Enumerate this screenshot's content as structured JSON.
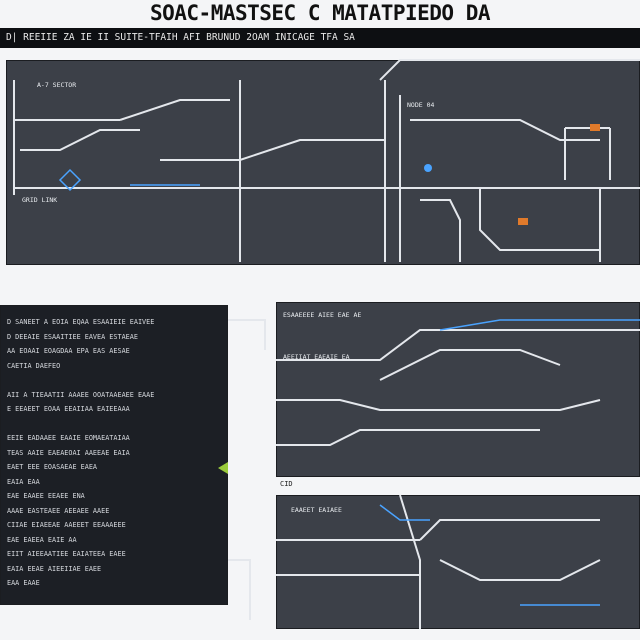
{
  "title": "SOAC-MASTSEC C MATATPIEDO DA",
  "subtitle": "D| REEIIE ZA IE II SUITE-TFAIH AFI BRUNUD 2OAM INICAGE TFA SA",
  "colors": {
    "panel": "#3c4048",
    "panel_dark": "#1c1f25",
    "line": "#e4e7ec",
    "accent_blue": "#4aa3ff",
    "accent_orange": "#e07a2b",
    "accent_green": "#9acb3b"
  },
  "panels": {
    "top_left_block": {
      "label_a": "A-7 SECTOR",
      "label_b": "GRID LINK",
      "label_c": "NODE 04"
    },
    "bottom_left_text": [
      "D SANEET A EOIA EQAA ESAAIEIE EAIVEE",
      "D DEEAIE ESAAITIEE EAVEA ESTAEAE",
      "AA EOAAI EOAGDAA EPA EAS AESAE",
      "CAETIA DAEFEO",
      "",
      "AII A TIEAATII AAAEE OOATAAEAEE EAAE",
      "E EEAEET EOAA EEAIIAA EAIEEAAA",
      "",
      "EEIE EADAAEE EAAIE EOMAEATAIAA",
      "TEAS AAIE EAEAEOAI AAEEAE EAIA",
      "EAET EEE EOASAEAE EAEA",
      "EAIA EAA",
      "EAE EAAEE EEAEE ENA",
      "AAAE EASTEAEE AEEAEE AAEE",
      "CIIAE EIAEEAE AAEEET EEAAAEEE",
      "EAE EAEEA EAIE AA",
      "EIIT AIEEAATIEE EAIATEEA EAEE",
      "EAIA EEAE AIEEIIAE EAEE",
      "EAA EAAE"
    ],
    "bottom_right_labels": {
      "r1": "ESAAEEEE AIEE EAE AE",
      "r2": "AEEIIAT EAEAIE EA",
      "r3": "CID",
      "r4": "EAAEET EAIAEE"
    }
  }
}
